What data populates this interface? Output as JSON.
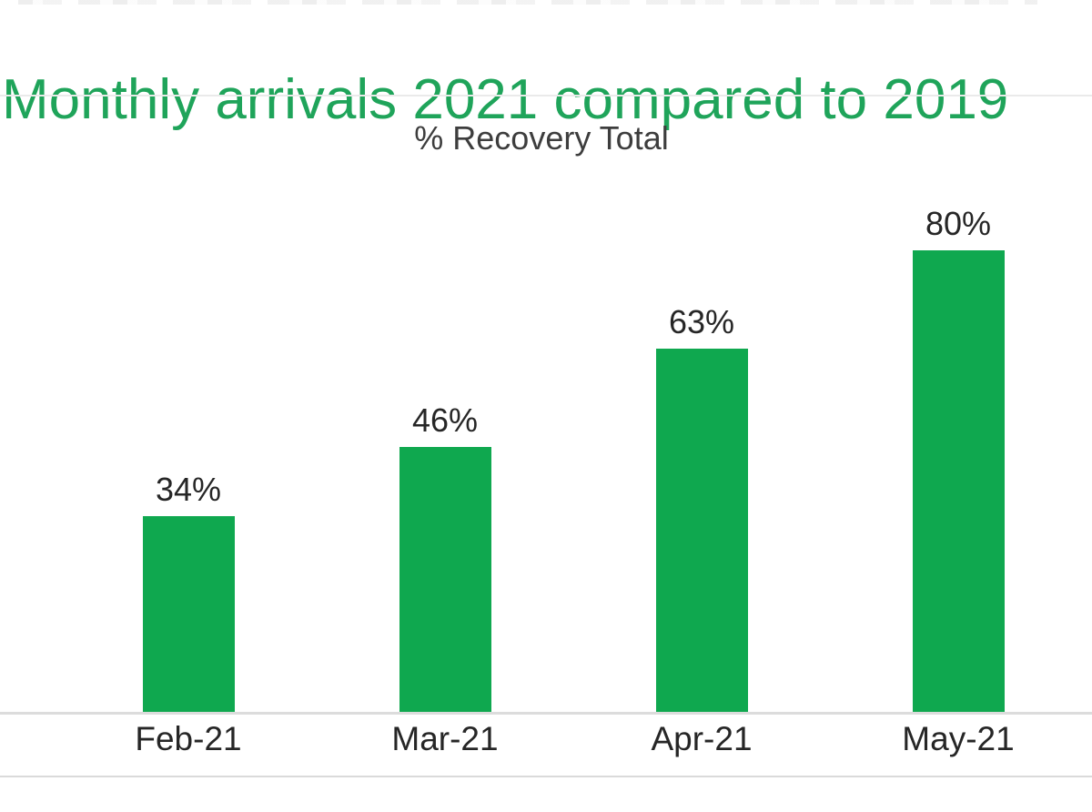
{
  "header": {
    "title": "Monthly arrivals 2021 compared to 2019",
    "title_color": "#1fa45a"
  },
  "chart_data": {
    "type": "bar",
    "title": "% Recovery Total",
    "categories": [
      "Feb-21",
      "Mar-21",
      "Apr-21",
      "May-21"
    ],
    "values": [
      34,
      46,
      63,
      80
    ],
    "value_labels": [
      "34%",
      "46%",
      "63%",
      "80%"
    ],
    "xlabel": "",
    "ylabel": "",
    "ylim": [
      0,
      90
    ],
    "grid": false,
    "legend": false,
    "bar_color": "#0fa84f",
    "value_label_color": "#262626",
    "tick_label_color": "#262626",
    "axis_line_color": "#dcdcdc"
  }
}
